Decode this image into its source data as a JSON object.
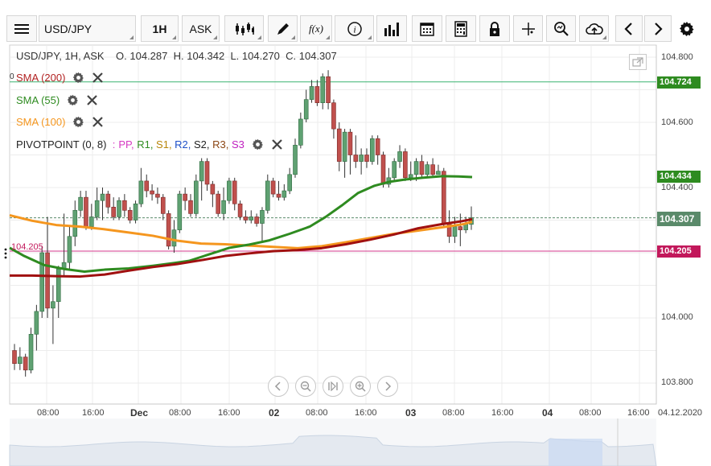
{
  "toolbar": {
    "menu_icon": "hamburger-menu-icon",
    "symbol": "USD/JPY",
    "timeframe": "1H",
    "price_side": "ASK",
    "chart_type_icon": "candlestick-icon",
    "draw_icon": "pencil-icon",
    "fx_label": "f(x)",
    "info_icon": "info-icon",
    "bars_icon": "bar-chart-icon",
    "calendar_icon": "calendar-icon",
    "calculator_icon": "calculator-icon",
    "lock_icon": "lock-icon",
    "crosshair_icon": "crosshair-icon",
    "zoom_icon": "zoom-icon",
    "cloud_icon": "cloud-upload-icon",
    "prev_icon": "chevron-left-icon",
    "next_icon": "chevron-right-icon",
    "settings_icon": "gear-icon"
  },
  "legend": {
    "instrument": "USD/JPY, 1H, ASK",
    "open": "O. 104.287",
    "high": "H. 104.342",
    "low": "L. 104.270",
    "close": "C. 104.307"
  },
  "indicators": [
    {
      "label": "SMA (200)",
      "color": "#b22222"
    },
    {
      "label": "SMA (55)",
      "color": "#2e8b20"
    },
    {
      "label": "SMA (100)",
      "color": "#f5961e"
    }
  ],
  "pivot": {
    "label": "PIVOTPOINT (0, 8)",
    "sep": ":",
    "parts": [
      {
        "t": "PP,",
        "c": "#d63ac2"
      },
      {
        "t": "R1,",
        "c": "#2e8b20"
      },
      {
        "t": "S1,",
        "c": "#b8860b"
      },
      {
        "t": "R2,",
        "c": "#1e50c8"
      },
      {
        "t": "S2,",
        "c": "#222222"
      },
      {
        "t": "R3,",
        "c": "#8b4513"
      },
      {
        "t": "S3",
        "c": "#c020c0"
      }
    ]
  },
  "left_marker": "0",
  "left_level": "104.205",
  "price_axis": [
    "104.800",
    "104.600",
    "104.400",
    "104.200",
    "104.000",
    "103.800"
  ],
  "price_tags": [
    {
      "value": "104.724",
      "color": "#2e8b20"
    },
    {
      "value": "104.434",
      "color": "#2e8b20"
    },
    {
      "value": "104.307",
      "color": "#5a8a6a"
    },
    {
      "value": "104.205",
      "color": "#c2185b"
    }
  ],
  "time_axis": [
    {
      "t": "08:00",
      "big": false
    },
    {
      "t": "16:00",
      "big": false
    },
    {
      "t": "Dec",
      "big": true
    },
    {
      "t": "08:00",
      "big": false
    },
    {
      "t": "16:00",
      "big": false
    },
    {
      "t": "02",
      "big": true
    },
    {
      "t": "08:00",
      "big": false
    },
    {
      "t": "16:00",
      "big": false
    },
    {
      "t": "03",
      "big": true
    },
    {
      "t": "08:00",
      "big": false
    },
    {
      "t": "16:00",
      "big": false
    },
    {
      "t": "04",
      "big": true
    },
    {
      "t": "08:00",
      "big": false
    },
    {
      "t": "16:00",
      "big": false
    }
  ],
  "date_label": "04.12.2020",
  "nav_buttons": [
    "scroll-left-icon",
    "zoom-out-icon",
    "reset-icon",
    "zoom-in-icon",
    "scroll-right-icon"
  ],
  "chart_data": {
    "type": "candlestick",
    "symbol": "USD/JPY",
    "interval": "1H",
    "ylim": [
      103.75,
      104.82
    ],
    "levels": {
      "sma200_last": 104.307,
      "sma55_last": 104.434,
      "resistance": 104.724,
      "support": 104.205
    },
    "candles": [
      [
        103.9,
        103.86,
        103.92,
        103.84
      ],
      [
        103.86,
        103.88,
        103.91,
        103.84
      ],
      [
        103.88,
        103.84,
        103.89,
        103.82
      ],
      [
        103.84,
        103.95,
        103.97,
        103.83
      ],
      [
        103.95,
        104.02,
        104.04,
        103.9
      ],
      [
        104.02,
        104.2,
        104.22,
        104.0
      ],
      [
        104.2,
        104.03,
        104.31,
        104.0
      ],
      [
        104.03,
        104.05,
        104.1,
        103.92
      ],
      [
        104.05,
        104.15,
        104.16,
        104.0
      ],
      [
        104.15,
        104.17,
        104.32,
        104.13
      ],
      [
        104.17,
        104.25,
        104.28,
        104.15
      ],
      [
        104.25,
        104.33,
        104.36,
        104.22
      ],
      [
        104.33,
        104.37,
        104.39,
        104.31
      ],
      [
        104.37,
        104.28,
        104.39,
        104.27
      ],
      [
        104.28,
        104.31,
        104.35,
        104.27
      ],
      [
        104.31,
        104.36,
        104.4,
        104.3
      ],
      [
        104.36,
        104.38,
        104.4,
        104.3
      ],
      [
        104.38,
        104.34,
        104.39,
        104.32
      ],
      [
        104.34,
        104.31,
        104.37,
        104.3
      ],
      [
        104.31,
        104.36,
        104.37,
        104.3
      ],
      [
        104.36,
        104.33,
        104.38,
        104.31
      ],
      [
        104.33,
        104.3,
        104.34,
        104.29
      ],
      [
        104.3,
        104.35,
        104.36,
        104.29
      ],
      [
        104.35,
        104.42,
        104.46,
        104.34
      ],
      [
        104.42,
        104.39,
        104.44,
        104.37
      ],
      [
        104.39,
        104.38,
        104.41,
        104.36
      ],
      [
        104.38,
        104.37,
        104.4,
        104.35
      ],
      [
        104.37,
        104.32,
        104.38,
        104.3
      ],
      [
        104.32,
        104.22,
        104.33,
        104.21
      ],
      [
        104.22,
        104.27,
        104.3,
        104.2
      ],
      [
        104.27,
        104.38,
        104.39,
        104.26
      ],
      [
        104.38,
        104.36,
        104.4,
        104.33
      ],
      [
        104.36,
        104.32,
        104.38,
        104.31
      ],
      [
        104.32,
        104.42,
        104.44,
        104.31
      ],
      [
        104.42,
        104.48,
        104.49,
        104.36
      ],
      [
        104.48,
        104.41,
        104.49,
        104.39
      ],
      [
        104.41,
        104.38,
        104.42,
        104.34
      ],
      [
        104.38,
        104.32,
        104.39,
        104.31
      ],
      [
        104.32,
        104.36,
        104.4,
        104.3
      ],
      [
        104.36,
        104.42,
        104.43,
        104.35
      ],
      [
        104.42,
        104.35,
        104.43,
        104.33
      ],
      [
        104.35,
        104.31,
        104.36,
        104.3
      ],
      [
        104.31,
        104.3,
        104.33,
        104.29
      ],
      [
        104.3,
        104.31,
        104.33,
        104.29
      ],
      [
        104.31,
        104.29,
        104.32,
        104.28
      ],
      [
        104.29,
        104.33,
        104.34,
        104.23
      ],
      [
        104.33,
        104.42,
        104.44,
        104.32
      ],
      [
        104.42,
        104.38,
        104.43,
        104.37
      ],
      [
        104.38,
        104.37,
        104.42,
        104.36
      ],
      [
        104.37,
        104.39,
        104.41,
        104.36
      ],
      [
        104.39,
        104.44,
        104.46,
        104.38
      ],
      [
        104.44,
        104.53,
        104.55,
        104.43
      ],
      [
        104.53,
        104.61,
        104.63,
        104.52
      ],
      [
        104.61,
        104.67,
        104.7,
        104.6
      ],
      [
        104.67,
        104.71,
        104.73,
        104.66
      ],
      [
        104.71,
        104.66,
        104.73,
        104.65
      ],
      [
        104.66,
        104.74,
        104.75,
        104.64
      ],
      [
        104.74,
        104.66,
        104.76,
        104.64
      ],
      [
        104.66,
        104.58,
        104.67,
        104.55
      ],
      [
        104.58,
        104.48,
        104.6,
        104.45
      ],
      [
        104.48,
        104.57,
        104.58,
        104.43
      ],
      [
        104.57,
        104.5,
        104.58,
        104.44
      ],
      [
        104.5,
        104.48,
        104.56,
        104.46
      ],
      [
        104.48,
        104.5,
        104.52,
        104.44
      ],
      [
        104.5,
        104.48,
        104.52,
        104.46
      ],
      [
        104.48,
        104.55,
        104.56,
        104.47
      ],
      [
        104.55,
        104.5,
        104.56,
        104.47
      ],
      [
        104.5,
        104.41,
        104.51,
        104.4
      ],
      [
        104.41,
        104.43,
        104.46,
        104.4
      ],
      [
        104.43,
        104.48,
        104.49,
        104.42
      ],
      [
        104.48,
        104.51,
        104.53,
        104.46
      ],
      [
        104.51,
        104.43,
        104.52,
        104.42
      ],
      [
        104.43,
        104.44,
        104.48,
        104.42
      ],
      [
        104.44,
        104.48,
        104.49,
        104.42
      ],
      [
        104.48,
        104.44,
        104.5,
        104.43
      ],
      [
        104.44,
        104.47,
        104.48,
        104.43
      ],
      [
        104.47,
        104.44,
        104.49,
        104.43
      ],
      [
        104.44,
        104.45,
        104.47,
        104.44
      ],
      [
        104.45,
        104.29,
        104.46,
        104.28
      ],
      [
        104.29,
        104.25,
        104.33,
        104.23
      ],
      [
        104.25,
        104.28,
        104.31,
        104.23
      ],
      [
        104.28,
        104.27,
        104.32,
        104.22
      ],
      [
        104.27,
        104.29,
        104.31,
        104.26
      ],
      [
        104.287,
        104.307,
        104.342,
        104.27
      ]
    ]
  }
}
